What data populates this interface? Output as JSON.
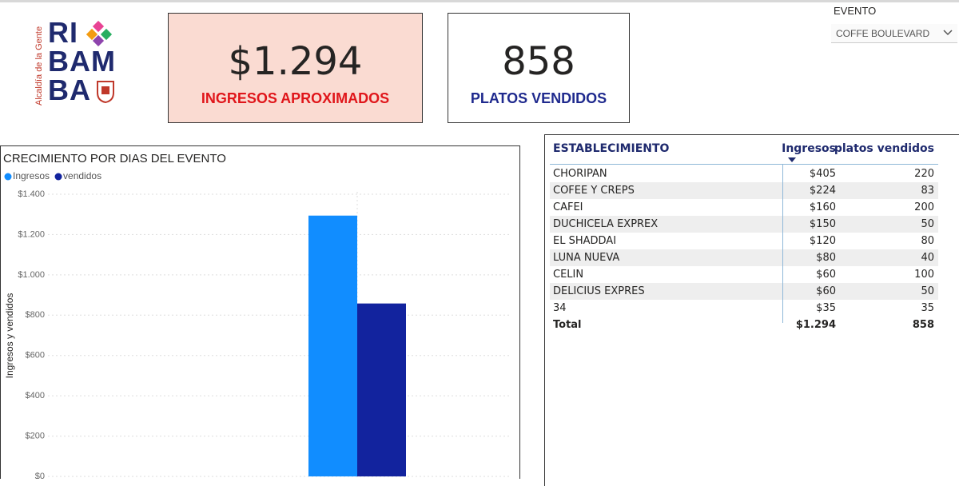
{
  "logo": {
    "lines": [
      "RI",
      "BAM",
      "BA"
    ],
    "tagline": "Alcaldía de la Gente"
  },
  "cards": [
    {
      "value": "$1.294",
      "label": "INGRESOS APROXIMADOS"
    },
    {
      "value": "858",
      "label": "PLATOS VENDIDOS"
    }
  ],
  "slicer": {
    "title": "EVENTO",
    "selected": "COFFE BOULEVARD"
  },
  "chart_data": {
    "type": "bar",
    "title": "CRECIMIENTO POR DIAS DEL EVENTO",
    "y_label": "Ingresos y vendidos",
    "categories": [
      null
    ],
    "series": [
      {
        "name": "Ingresos",
        "color": "#118dff",
        "values": [
          1294
        ]
      },
      {
        "name": "vendidos",
        "color": "#12239e",
        "values": [
          858
        ]
      }
    ],
    "ylim": [
      0,
      1400
    ],
    "yticks": [
      {
        "value": 0,
        "label": "$0"
      },
      {
        "value": 200,
        "label": "$200"
      },
      {
        "value": 400,
        "label": "$400"
      },
      {
        "value": 600,
        "label": "$600"
      },
      {
        "value": 800,
        "label": "$800"
      },
      {
        "value": 1000,
        "label": "$1.000"
      },
      {
        "value": 1200,
        "label": "$1.200"
      },
      {
        "value": 1400,
        "label": "$1.400"
      }
    ],
    "grid": true
  },
  "table": {
    "columns": [
      "ESTABLECIMIENTO",
      "Ingresos",
      "platos vendidos"
    ],
    "rows": [
      [
        "CHORIPAN",
        "$405",
        220
      ],
      [
        "COFEE Y CREPS",
        "$224",
        83
      ],
      [
        "CAFEI",
        "$160",
        200
      ],
      [
        "DUCHICELA EXPREX",
        "$150",
        50
      ],
      [
        "EL SHADDAI",
        "$120",
        80
      ],
      [
        "LUNA NUEVA",
        "$80",
        40
      ],
      [
        "CELIN",
        "$60",
        100
      ],
      [
        "DELICIUS EXPRES",
        "$60",
        50
      ],
      [
        "34",
        "$35",
        35
      ]
    ],
    "total": [
      "Total",
      "$1.294",
      858
    ]
  }
}
